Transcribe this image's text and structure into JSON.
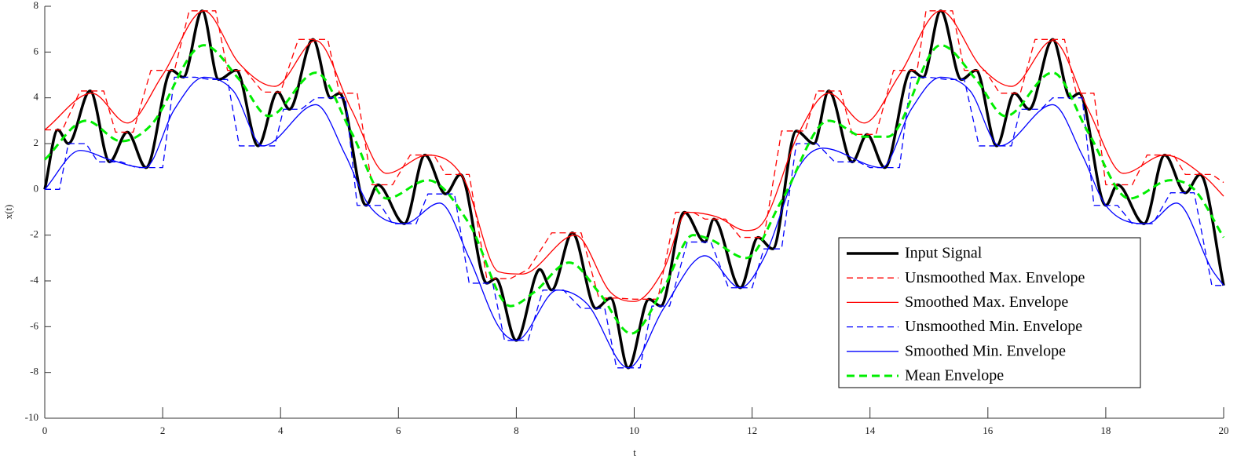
{
  "chart_data": {
    "type": "line",
    "x_label": "t",
    "y_label": "x(t)",
    "xlim": [
      0,
      20
    ],
    "ylim": [
      -10,
      8
    ],
    "xticks": [
      0,
      2,
      4,
      6,
      8,
      10,
      12,
      14,
      16,
      18,
      20
    ],
    "yticks": [
      -10,
      -8,
      -6,
      -4,
      -2,
      0,
      2,
      4,
      6,
      8
    ],
    "grid": false,
    "legend": "lower right",
    "series": [
      {
        "name": "Input Signal",
        "color": "#000000",
        "style": "solid",
        "width": 3.5,
        "smooth": true,
        "x": [
          0,
          0.22,
          0.4,
          0.77,
          1.1,
          1.4,
          1.72,
          2.15,
          2.35,
          2.67,
          2.95,
          3.25,
          3.62,
          3.95,
          4.15,
          4.55,
          4.85,
          5.0,
          5.45,
          5.65,
          6.1,
          6.45,
          6.8,
          7.05,
          7.5,
          7.65,
          8.0,
          8.4,
          8.6,
          8.95,
          9.35,
          9.6,
          9.9,
          10.25,
          10.45,
          10.85,
          11.2,
          11.35,
          11.8,
          12.1,
          12.35,
          12.75,
          13.05,
          13.3,
          13.7,
          13.95,
          14.25,
          14.7,
          14.9,
          15.2,
          15.55,
          15.8,
          16.15,
          16.45,
          16.7,
          17.1,
          17.4,
          17.55,
          18.0,
          18.2,
          18.65,
          19.0,
          19.35,
          19.6,
          20
        ],
        "values": [
          0,
          2.6,
          2.0,
          4.3,
          1.2,
          2.5,
          0.95,
          5.2,
          4.9,
          7.8,
          4.8,
          5.2,
          1.9,
          4.25,
          3.5,
          6.55,
          4.0,
          4.2,
          -0.7,
          0.2,
          -1.5,
          1.5,
          -0.2,
          0.65,
          -4.1,
          -3.9,
          -6.6,
          -3.5,
          -4.4,
          -1.9,
          -5.2,
          -4.75,
          -7.8,
          -4.8,
          -5.1,
          -1.0,
          -2.3,
          -1.3,
          -4.3,
          -2.1,
          -2.6,
          2.55,
          2.0,
          4.3,
          1.2,
          2.4,
          0.95,
          5.2,
          4.9,
          7.8,
          4.8,
          5.2,
          1.9,
          4.2,
          3.5,
          6.55,
          4.0,
          4.2,
          -0.7,
          0.2,
          -1.5,
          1.5,
          -0.15,
          0.65,
          -4.2
        ]
      },
      {
        "name": "Unsmoothed Max. Envelope",
        "color": "#ff0000",
        "style": "dashed",
        "width": 1.3,
        "smooth": false,
        "x": [
          0,
          0.3,
          0.6,
          1.0,
          1.2,
          1.5,
          1.8,
          2.2,
          2.45,
          2.9,
          3.1,
          3.4,
          3.7,
          4.0,
          4.3,
          4.8,
          5.0,
          5.3,
          5.55,
          5.9,
          6.2,
          6.6,
          6.8,
          7.2,
          7.5,
          7.9,
          8.2,
          8.6,
          9.1,
          9.4,
          9.7,
          10.0,
          10.4,
          10.7,
          11.0,
          11.2,
          11.55,
          11.8,
          12.2,
          12.5,
          12.9,
          13.1,
          13.5,
          13.7,
          14.1,
          14.4,
          14.8,
          14.95,
          15.4,
          15.6,
          15.95,
          16.2,
          16.55,
          16.8,
          17.3,
          17.5,
          17.8,
          18.0,
          18.45,
          18.7,
          19.15,
          19.35,
          19.8,
          20
        ],
        "values": [
          2.6,
          2.6,
          4.3,
          4.3,
          2.5,
          2.5,
          5.2,
          5.2,
          7.8,
          7.8,
          5.2,
          5.2,
          4.25,
          4.25,
          6.55,
          6.55,
          4.2,
          4.2,
          0.2,
          0.2,
          1.5,
          1.5,
          0.65,
          0.65,
          -3.9,
          -3.9,
          -3.5,
          -1.9,
          -1.9,
          -4.75,
          -4.75,
          -4.8,
          -4.8,
          -1.0,
          -1.0,
          -1.3,
          -1.3,
          -2.1,
          -2.1,
          2.55,
          2.55,
          4.3,
          4.3,
          2.4,
          2.4,
          5.2,
          5.2,
          7.8,
          7.8,
          5.2,
          5.2,
          4.2,
          4.2,
          6.55,
          6.55,
          4.2,
          4.2,
          0.2,
          0.2,
          1.5,
          1.5,
          0.65,
          0.65,
          0.3
        ]
      },
      {
        "name": "Smoothed Max. Envelope",
        "color": "#ff0000",
        "style": "solid",
        "width": 1.3,
        "smooth": true,
        "x": [
          0,
          0.8,
          1.4,
          2.0,
          2.7,
          3.3,
          3.9,
          4.6,
          5.2,
          5.8,
          6.5,
          7.1,
          7.7,
          8.1,
          9.0,
          9.6,
          10.0,
          10.5,
          10.9,
          11.4,
          11.9,
          12.2,
          12.8,
          13.3,
          13.9,
          14.5,
          15.2,
          15.9,
          16.4,
          17.1,
          17.7,
          18.3,
          19.0,
          19.7,
          20
        ],
        "values": [
          2.6,
          4.2,
          2.9,
          5.0,
          7.8,
          5.5,
          4.5,
          6.5,
          3.5,
          0.7,
          1.5,
          0.5,
          -3.6,
          -3.7,
          -2.0,
          -4.5,
          -4.9,
          -3.5,
          -1.0,
          -1.2,
          -1.8,
          -1.4,
          2.5,
          4.2,
          2.9,
          5.0,
          7.8,
          5.3,
          4.5,
          6.5,
          3.5,
          0.7,
          1.5,
          0.5,
          -0.3
        ]
      },
      {
        "name": "Unsmoothed Min. Envelope",
        "color": "#0000ff",
        "style": "dashed",
        "width": 1.3,
        "smooth": false,
        "x": [
          0,
          0.25,
          0.4,
          0.7,
          0.9,
          1.3,
          1.55,
          2.0,
          2.2,
          2.55,
          2.8,
          3.1,
          3.3,
          3.9,
          4.05,
          4.35,
          4.6,
          5.1,
          5.3,
          5.7,
          5.9,
          6.3,
          6.5,
          6.95,
          7.2,
          7.6,
          7.8,
          8.2,
          8.45,
          8.8,
          9.1,
          9.5,
          9.7,
          10.1,
          10.3,
          10.6,
          10.9,
          11.3,
          11.6,
          12.0,
          12.2,
          12.5,
          12.75,
          13.1,
          13.4,
          13.8,
          14.0,
          14.5,
          14.7,
          15.0,
          15.3,
          15.6,
          15.85,
          16.4,
          16.55,
          16.9,
          17.1,
          17.6,
          17.8,
          18.2,
          18.45,
          18.8,
          19.1,
          19.5,
          19.8,
          20
        ],
        "values": [
          0,
          0,
          2.0,
          2.0,
          1.2,
          1.2,
          0.95,
          0.95,
          4.9,
          4.9,
          4.8,
          4.8,
          1.9,
          1.9,
          3.5,
          3.5,
          4.0,
          4.0,
          -0.7,
          -0.7,
          -1.5,
          -1.5,
          -0.2,
          -0.2,
          -4.1,
          -4.1,
          -6.6,
          -6.6,
          -4.4,
          -4.4,
          -5.2,
          -5.2,
          -7.8,
          -7.8,
          -5.1,
          -5.1,
          -2.3,
          -2.3,
          -4.3,
          -4.3,
          -2.6,
          -2.6,
          2.0,
          2.0,
          1.2,
          1.2,
          0.95,
          0.95,
          4.9,
          4.9,
          4.8,
          4.8,
          1.9,
          1.9,
          3.5,
          3.5,
          4.0,
          4.0,
          -0.7,
          -0.7,
          -1.5,
          -1.5,
          -0.15,
          -0.15,
          -4.2,
          -4.2
        ]
      },
      {
        "name": "Smoothed Min. Envelope",
        "color": "#0000ff",
        "style": "solid",
        "width": 1.3,
        "smooth": true,
        "x": [
          0,
          0.6,
          1.1,
          1.7,
          2.2,
          2.7,
          3.2,
          3.7,
          4.6,
          5.1,
          5.5,
          6.1,
          6.7,
          7.2,
          7.7,
          8.0,
          8.7,
          9.2,
          9.9,
          10.5,
          11.2,
          11.8,
          12.2,
          12.8,
          13.2,
          14.2,
          14.7,
          15.2,
          15.7,
          16.2,
          17.1,
          17.6,
          18.0,
          18.7,
          19.2,
          19.8,
          20
        ],
        "values": [
          0,
          1.7,
          1.3,
          0.95,
          3.5,
          4.9,
          4.3,
          1.9,
          3.7,
          1.5,
          -0.7,
          -1.5,
          -0.6,
          -3.0,
          -6.0,
          -6.6,
          -4.4,
          -5.0,
          -7.8,
          -5.2,
          -2.9,
          -4.3,
          -3.0,
          1.0,
          1.8,
          0.95,
          3.5,
          4.9,
          4.3,
          1.9,
          3.7,
          1.5,
          -0.7,
          -1.5,
          -0.6,
          -3.5,
          -4.2
        ]
      },
      {
        "name": "Mean Envelope",
        "color": "#00ee00",
        "style": "dashed",
        "width": 3,
        "smooth": true,
        "x": [
          0,
          0.7,
          1.3,
          1.8,
          2.7,
          3.3,
          3.8,
          4.6,
          5.2,
          5.8,
          6.5,
          7.2,
          7.9,
          8.3,
          8.9,
          9.4,
          9.95,
          10.5,
          11.0,
          11.3,
          11.9,
          12.5,
          13.3,
          13.9,
          14.3,
          15.2,
          15.8,
          16.3,
          17.1,
          17.7,
          18.4,
          19.1,
          19.5,
          20
        ],
        "values": [
          1.3,
          3.0,
          2.1,
          2.8,
          6.3,
          4.8,
          3.2,
          5.1,
          2.5,
          -0.4,
          0.4,
          -1.5,
          -5.1,
          -4.5,
          -3.2,
          -4.5,
          -6.3,
          -4.3,
          -2.0,
          -2.2,
          -3.0,
          -0.5,
          3.0,
          2.3,
          2.3,
          6.3,
          4.8,
          3.2,
          5.1,
          2.5,
          -0.4,
          0.4,
          0.0,
          -2.1
        ]
      }
    ]
  }
}
